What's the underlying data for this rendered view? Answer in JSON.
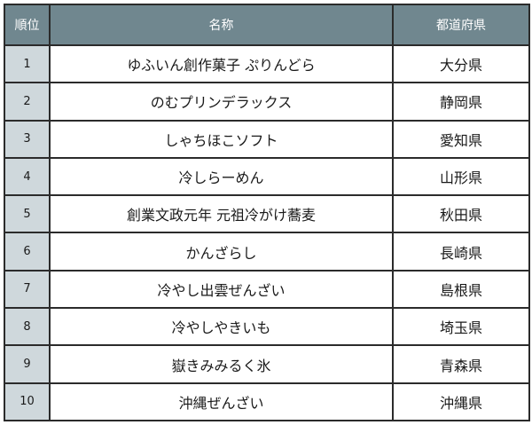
{
  "headers": {
    "rank": "順位",
    "name": "名称",
    "prefecture": "都道府県"
  },
  "colors": {
    "header_bg": "#70878f",
    "rank_bg": "#cfd8dc",
    "border": "#2b2b2b"
  },
  "rows": [
    {
      "rank": "1",
      "name": "ゆふいん創作菓子 ぷりんどら",
      "prefecture": "大分県"
    },
    {
      "rank": "2",
      "name": "のむプリンデラックス",
      "prefecture": "静岡県"
    },
    {
      "rank": "3",
      "name": "しゃちほこソフト",
      "prefecture": "愛知県"
    },
    {
      "rank": "4",
      "name": "冷しらーめん",
      "prefecture": "山形県"
    },
    {
      "rank": "5",
      "name": "創業文政元年 元祖冷がけ蕎麦",
      "prefecture": "秋田県"
    },
    {
      "rank": "6",
      "name": "かんざらし",
      "prefecture": "長崎県"
    },
    {
      "rank": "7",
      "name": "冷やし出雲ぜんざい",
      "prefecture": "島根県"
    },
    {
      "rank": "8",
      "name": "冷やしやきいも",
      "prefecture": "埼玉県"
    },
    {
      "rank": "9",
      "name": "嶽きみみるく氷",
      "prefecture": "青森県"
    },
    {
      "rank": "10",
      "name": "沖縄ぜんざい",
      "prefecture": "沖縄県"
    }
  ]
}
